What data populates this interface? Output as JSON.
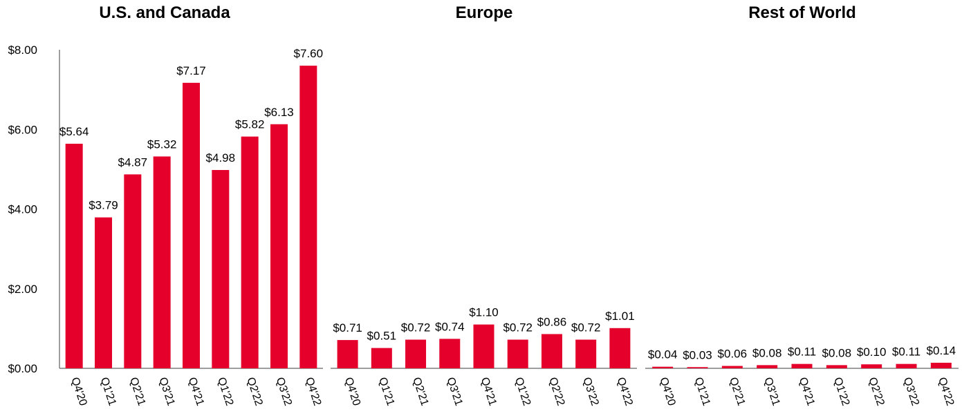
{
  "chart_data": [
    {
      "type": "bar",
      "title": "U.S. and Canada",
      "categories": [
        "Q4'20",
        "Q1'21",
        "Q2'21",
        "Q3'21",
        "Q4'21",
        "Q1'22",
        "Q2'22",
        "Q3'22",
        "Q4'22"
      ],
      "values": [
        5.64,
        3.79,
        4.87,
        5.32,
        7.17,
        4.98,
        5.82,
        6.13,
        7.6
      ],
      "value_labels": [
        "$5.64",
        "$3.79",
        "$4.87",
        "$5.32",
        "$7.17",
        "$4.98",
        "$5.82",
        "$6.13",
        "$7.60"
      ],
      "ylim": [
        0,
        8
      ],
      "yticks": [
        "$0.00",
        "$2.00",
        "$4.00",
        "$6.00",
        "$8.00"
      ],
      "color": "#e4002b"
    },
    {
      "type": "bar",
      "title": "Europe",
      "categories": [
        "Q4'20",
        "Q1'21",
        "Q2'21",
        "Q3'21",
        "Q4'21",
        "Q1'22",
        "Q2'22",
        "Q3'22",
        "Q4'22"
      ],
      "values": [
        0.71,
        0.51,
        0.72,
        0.74,
        1.1,
        0.72,
        0.86,
        0.72,
        1.01
      ],
      "value_labels": [
        "$0.71",
        "$0.51",
        "$0.72",
        "$0.74",
        "$1.10",
        "$0.72",
        "$0.86",
        "$0.72",
        "$1.01"
      ],
      "ylim": [
        0,
        8
      ],
      "color": "#e4002b"
    },
    {
      "type": "bar",
      "title": "Rest of World",
      "categories": [
        "Q4'20",
        "Q1'21",
        "Q2'21",
        "Q3'21",
        "Q4'21",
        "Q1'22",
        "Q2'22",
        "Q3'22",
        "Q4'22"
      ],
      "values": [
        0.04,
        0.03,
        0.06,
        0.08,
        0.11,
        0.08,
        0.1,
        0.11,
        0.14
      ],
      "value_labels": [
        "$0.04",
        "$0.03",
        "$0.06",
        "$0.08",
        "$0.11",
        "$0.08",
        "$0.10",
        "$0.11",
        "$0.14"
      ],
      "ylim": [
        0,
        8
      ],
      "color": "#e4002b"
    }
  ]
}
